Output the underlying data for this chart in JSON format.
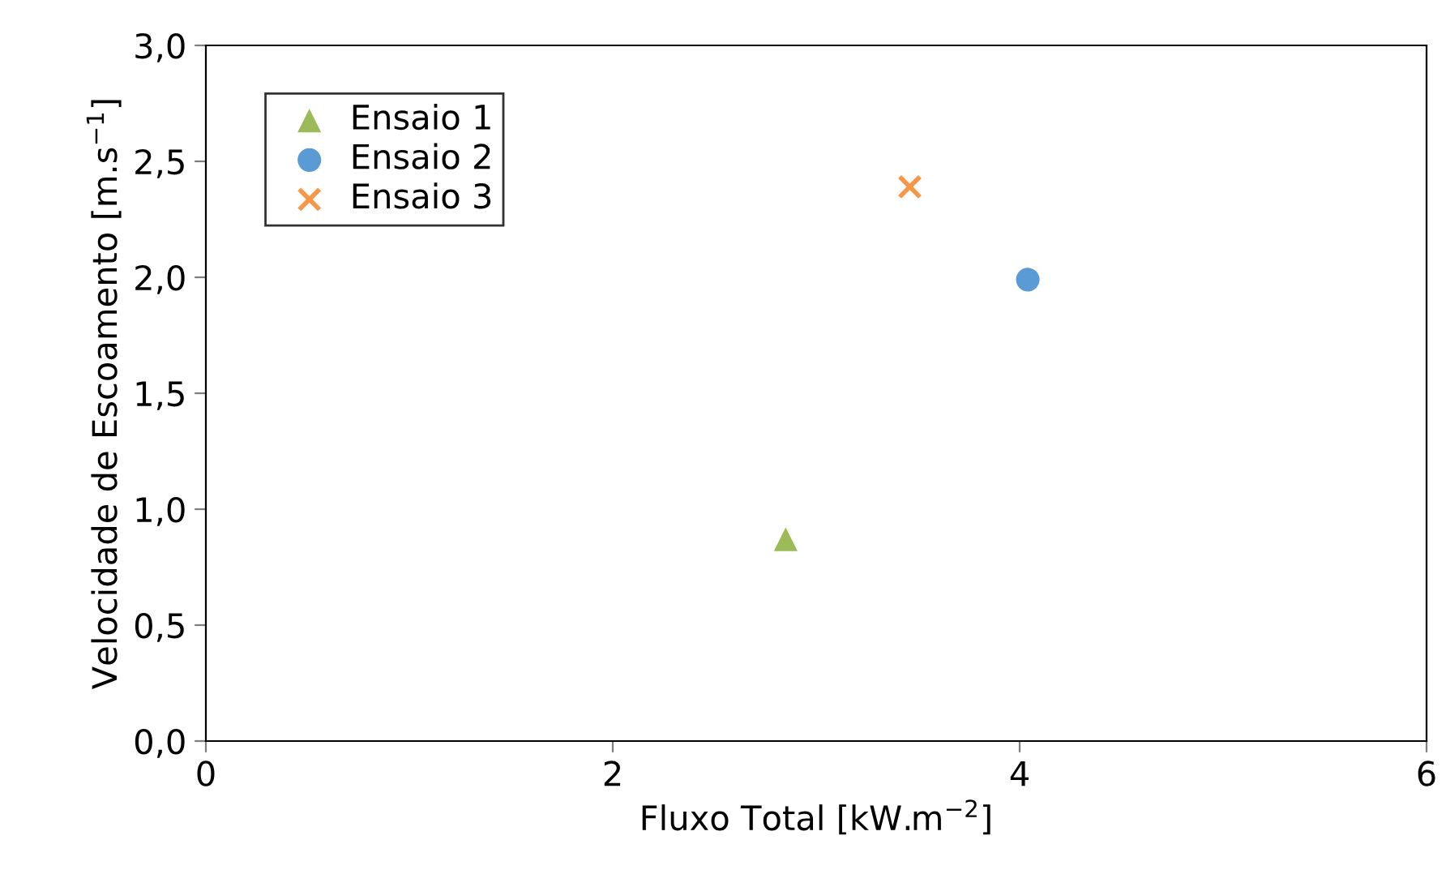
{
  "chart_data": {
    "type": "scatter",
    "xlabel": "Fluxo Total [kW.m$^{−2}$]",
    "ylabel": "Velocidade de Escoamento [m.s$^{−1}$]",
    "xlim": [
      0,
      6
    ],
    "xticks": [
      0,
      2,
      4,
      6
    ],
    "ylim": [
      0,
      3
    ],
    "yticks": [
      {
        "value": 0,
        "label": "0,0"
      },
      {
        "value": 0.5,
        "label": "0,5"
      },
      {
        "value": 1,
        "label": "1,0"
      },
      {
        "value": 1.5,
        "label": "1,5"
      },
      {
        "value": 2,
        "label": "2,0"
      },
      {
        "value": 2.5,
        "label": "2,5"
      },
      {
        "value": 3,
        "label": "3,0"
      }
    ],
    "grid": false,
    "legend": "top left",
    "series": [
      {
        "name": "Ensaio 1",
        "color": "#9bbb59",
        "marker": "triangle",
        "x": [
          2.85
        ],
        "values": [
          0.87
        ]
      },
      {
        "name": "Ensaio 2",
        "color": "#5b9bd5",
        "marker": "circle",
        "x": [
          4.04
        ],
        "values": [
          1.99
        ]
      },
      {
        "name": "Ensaio 3",
        "color": "#f79646",
        "marker": "cross",
        "x": [
          3.46
        ],
        "values": [
          2.39
        ]
      }
    ]
  }
}
